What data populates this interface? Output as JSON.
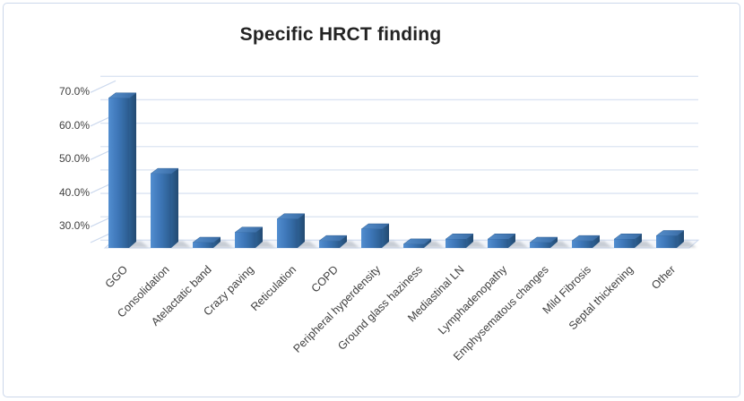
{
  "chart_data": {
    "type": "bar",
    "title": "Specific HRCT finding",
    "categories": [
      "GGO",
      "Consolidation",
      "Atelactatic band",
      "Crazy paving",
      "Reticulation",
      "COPD",
      "Peripheral hyperdensity",
      "Ground glass haziness",
      "Mediastinal LN",
      "Lymphadenopathy",
      "Emphysematous changes",
      "Mild Fibrosis",
      "Septal thickening",
      "Other"
    ],
    "values": [
      68,
      45.5,
      25,
      28,
      32,
      25.5,
      29,
      24.5,
      26,
      26,
      25,
      25.5,
      26,
      27
    ],
    "unit": "%",
    "xlabel": "",
    "ylabel": "",
    "yticks": [
      "70.0%",
      "60.0%",
      "50.0%",
      "40.0%",
      "30.0%"
    ],
    "ylim": [
      23.4,
      77
    ],
    "grid": true,
    "legend": false,
    "style": {
      "effect": "3d-column",
      "bar_color": "#3e77b9",
      "bar_color_light": "#4e89cb",
      "bar_color_dark": "#27547f",
      "gridline_color": "#dbe4f2",
      "axis_text_color": "#3f3f3f",
      "title_color": "#232323",
      "border_color": "#ccd8eb",
      "background": "#ffffff"
    }
  }
}
